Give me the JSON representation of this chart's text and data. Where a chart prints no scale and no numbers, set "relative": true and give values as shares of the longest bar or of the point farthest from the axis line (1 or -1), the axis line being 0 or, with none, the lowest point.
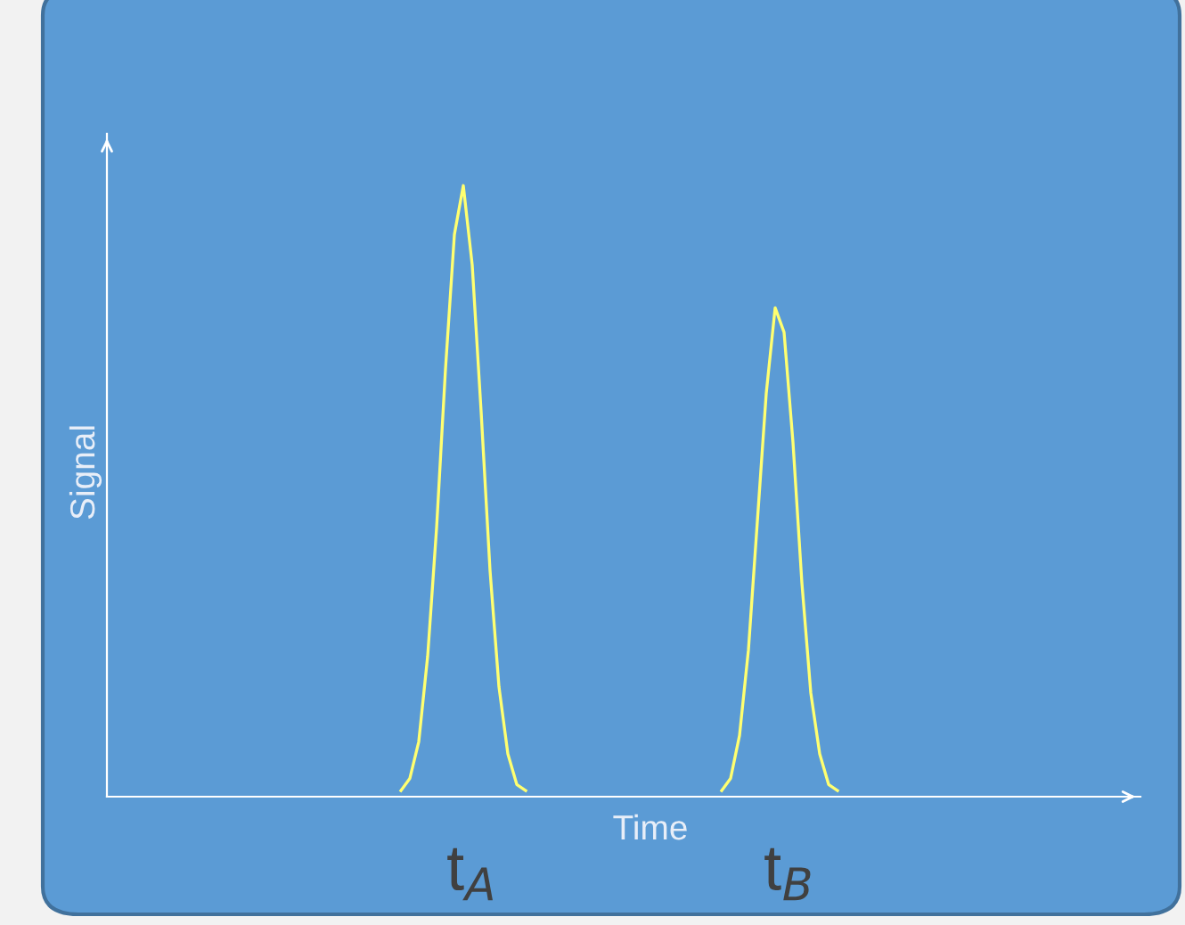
{
  "chart_data": {
    "type": "line",
    "relative": true,
    "xlabel": "Time",
    "ylabel": "Signal",
    "annotations": [
      "t$_{A}$",
      "t$_{B}$"
    ],
    "categories": [
      null,
      null,
      null,
      null,
      null,
      null,
      null,
      null,
      null,
      null,
      null,
      null,
      null,
      null,
      null,
      null,
      null,
      null,
      null,
      null,
      null,
      null,
      null,
      null,
      null,
      null,
      null,
      null,
      null,
      null,
      null,
      null,
      null,
      null,
      null,
      null,
      null,
      null,
      null,
      null,
      null,
      null,
      null,
      null,
      null,
      null,
      null,
      null,
      null,
      null,
      null,
      null,
      null,
      null,
      null,
      null,
      null,
      null,
      null,
      null,
      null,
      null,
      null,
      null,
      null,
      null,
      null,
      null,
      null,
      null,
      null,
      null,
      null,
      null,
      null,
      null,
      null,
      null,
      null,
      null,
      null,
      null,
      null,
      null,
      null,
      null,
      null,
      null,
      null,
      null,
      null,
      null,
      null,
      null,
      null,
      null,
      null,
      null,
      null,
      null,
      null,
      null,
      null,
      null,
      null,
      null,
      null,
      null,
      null,
      null,
      null,
      null,
      null,
      null,
      null,
      null,
      null
    ],
    "series": [
      {
        "color": "#ffff70",
        "values": [
          null,
          null,
          null,
          null,
          null,
          null,
          null,
          null,
          null,
          null,
          null,
          null,
          null,
          null,
          null,
          null,
          null,
          null,
          null,
          null,
          null,
          null,
          null,
          null,
          null,
          null,
          null,
          null,
          null,
          null,
          null,
          null,
          null,
          0.01,
          0.03,
          0.09,
          0.23,
          0.44,
          0.7,
          0.92,
          1,
          0.87,
          0.63,
          0.37,
          0.18,
          0.07,
          0.02,
          0.01,
          null,
          null,
          null,
          null,
          null,
          null,
          null,
          null,
          null,
          null,
          null,
          null,
          null,
          null,
          null,
          null,
          null,
          null,
          null,
          null,
          null,
          null,
          null,
          null,
          null,
          null,
          null,
          null,
          null,
          null,
          null,
          null,
          null,
          null,
          null,
          null,
          null,
          null,
          null,
          null,
          null,
          null,
          null,
          null,
          null,
          null,
          null,
          null,
          null,
          null,
          null,
          null,
          null,
          null,
          null,
          null,
          null,
          null,
          null,
          null,
          null,
          null,
          null,
          null,
          null,
          null,
          null,
          null,
          null
        ]
      },
      {
        "color": "#ffff70",
        "values": [
          null,
          null,
          null,
          null,
          null,
          null,
          null,
          null,
          null,
          null,
          null,
          null,
          null,
          null,
          null,
          null,
          null,
          null,
          null,
          null,
          null,
          null,
          null,
          null,
          null,
          null,
          null,
          null,
          null,
          null,
          null,
          null,
          null,
          null,
          null,
          null,
          null,
          null,
          null,
          null,
          null,
          null,
          null,
          null,
          null,
          null,
          null,
          null,
          null,
          null,
          null,
          null,
          null,
          null,
          null,
          null,
          null,
          null,
          null,
          null,
          null,
          null,
          null,
          null,
          null,
          null,
          null,
          null,
          null,
          0.01,
          0.03,
          0.1,
          0.24,
          0.45,
          0.66,
          0.8,
          0.76,
          0.58,
          0.35,
          0.17,
          0.07,
          0.02,
          0.01,
          null,
          null,
          null,
          null,
          null,
          null,
          null,
          null,
          null,
          null,
          null,
          null,
          null,
          null,
          null,
          null,
          null,
          null,
          null,
          null,
          null,
          null,
          null,
          null,
          null,
          null,
          null,
          null,
          null,
          null,
          null,
          null,
          null,
          null
        ]
      }
    ],
    "grid": false,
    "legend": false,
    "marker": "none",
    "line_style": "solid"
  }
}
